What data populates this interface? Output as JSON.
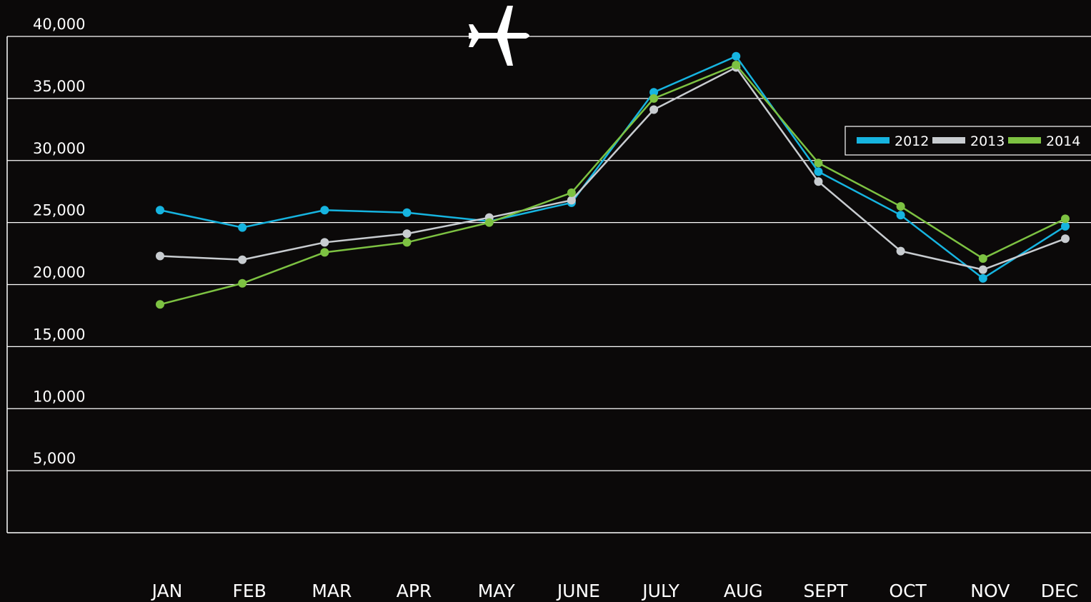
{
  "chart_data": {
    "type": "line",
    "categories": [
      "JAN",
      "FEB",
      "MAR",
      "APR",
      "MAY",
      "JUNE",
      "JULY",
      "AUG",
      "SEPT",
      "OCT",
      "NOV",
      "DEC"
    ],
    "series": [
      {
        "name": "2012",
        "color": "#16b4e0",
        "values": [
          26000,
          24600,
          26000,
          25800,
          25100,
          26600,
          35500,
          38400,
          29100,
          25600,
          20500,
          24700
        ]
      },
      {
        "name": "2013",
        "color": "#c8ccd0",
        "values": [
          22300,
          22000,
          23400,
          24100,
          25400,
          26800,
          34100,
          37500,
          28300,
          22700,
          21200,
          23700
        ]
      },
      {
        "name": "2014",
        "color": "#7dc242",
        "values": [
          18400,
          20100,
          22600,
          23400,
          25000,
          27400,
          35000,
          37700,
          29800,
          26300,
          22100,
          25300
        ]
      }
    ],
    "ylim": [
      0,
      40000
    ],
    "yticks": [
      {
        "value": 5000,
        "label": "5,000"
      },
      {
        "value": 10000,
        "label": "10,000"
      },
      {
        "value": 15000,
        "label": "15,000"
      },
      {
        "value": 20000,
        "label": "20,000"
      },
      {
        "value": 25000,
        "label": "25,000"
      },
      {
        "value": 30000,
        "label": "30,000"
      },
      {
        "value": 35000,
        "label": "35,000"
      },
      {
        "value": 40000,
        "label": "40,000"
      }
    ],
    "grid": true,
    "legend": "upper right"
  }
}
